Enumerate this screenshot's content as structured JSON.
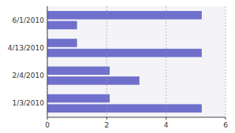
{
  "chart_data": {
    "type": "bar",
    "orientation": "horizontal",
    "categories": [
      "1/3/2010",
      "2/4/2010",
      "4/13/2010",
      "6/1/2010"
    ],
    "series": [
      {
        "color": "#7070cc",
        "values": [
          5.2,
          3.1,
          5.2,
          1.0
        ]
      },
      {
        "color": "#7070cc",
        "values": [
          2.1,
          2.1,
          1.0,
          5.2
        ]
      }
    ],
    "xlim": [
      0,
      6
    ],
    "xticks": [
      0,
      2,
      4,
      6
    ],
    "grid": true
  }
}
